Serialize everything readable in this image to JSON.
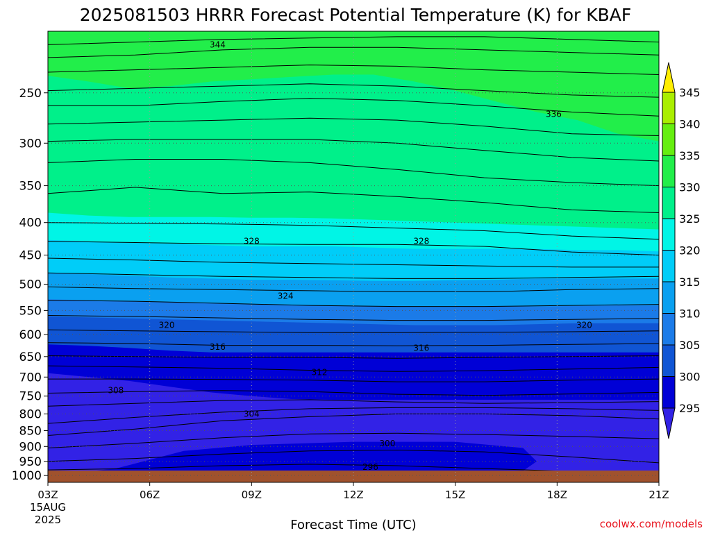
{
  "chart_data": {
    "type": "heatmap",
    "title": "2025081503 HRRR Forecast Potential Temperature (K) for KBAF",
    "xlabel": "Forecast Time (UTC)",
    "ylabel": "",
    "x_categories": [
      "03Z",
      "06Z",
      "09Z",
      "12Z",
      "15Z",
      "18Z",
      "21Z"
    ],
    "x_first_sublabels": [
      "15AUG",
      "2025"
    ],
    "x_range_hours": [
      3,
      21
    ],
    "y_ticks": [
      250,
      300,
      350,
      400,
      450,
      500,
      550,
      600,
      650,
      700,
      750,
      800,
      850,
      900,
      950,
      1000
    ],
    "y_range_hpa": [
      1025,
      200
    ],
    "y_scale": "log pressure",
    "grid": "dotted",
    "colorbar": {
      "levels": [
        295,
        300,
        305,
        310,
        315,
        320,
        325,
        330,
        335,
        340,
        345
      ],
      "labels": [
        "295",
        "300",
        "305",
        "310",
        "315",
        "320",
        "325",
        "330",
        "335",
        "340",
        "345"
      ],
      "colors": [
        "#3222e6",
        "#0000d6",
        "#1055d4",
        "#1b7be8",
        "#0aa0f0",
        "#00cdf8",
        "#00f5e6",
        "#00f08a",
        "#22ee4a",
        "#66ee10",
        "#aaee00",
        "#ffee00"
      ],
      "extends": "both"
    },
    "contour_labels": [
      {
        "text": "344",
        "hour": 8.0,
        "hpa": 210
      },
      {
        "text": "336",
        "hour": 17.9,
        "hpa": 270
      },
      {
        "text": "328",
        "hour": 9.0,
        "hpa": 428
      },
      {
        "text": "328",
        "hour": 14.0,
        "hpa": 428
      },
      {
        "text": "324",
        "hour": 10.0,
        "hpa": 522
      },
      {
        "text": "320",
        "hour": 6.5,
        "hpa": 580
      },
      {
        "text": "320",
        "hour": 18.8,
        "hpa": 580
      },
      {
        "text": "316",
        "hour": 8.0,
        "hpa": 628
      },
      {
        "text": "316",
        "hour": 14.0,
        "hpa": 630
      },
      {
        "text": "312",
        "hour": 11.0,
        "hpa": 688
      },
      {
        "text": "308",
        "hour": 5.0,
        "hpa": 735
      },
      {
        "text": "304",
        "hour": 9.0,
        "hpa": 800
      },
      {
        "text": "300",
        "hour": 13.0,
        "hpa": 890
      },
      {
        "text": "296",
        "hour": 12.5,
        "hpa": 970
      }
    ],
    "surface_color": "#a0522d"
  },
  "credit": "coolwx.com/models",
  "colors": {
    "credit": "#e8141e",
    "grid": "#555555"
  }
}
